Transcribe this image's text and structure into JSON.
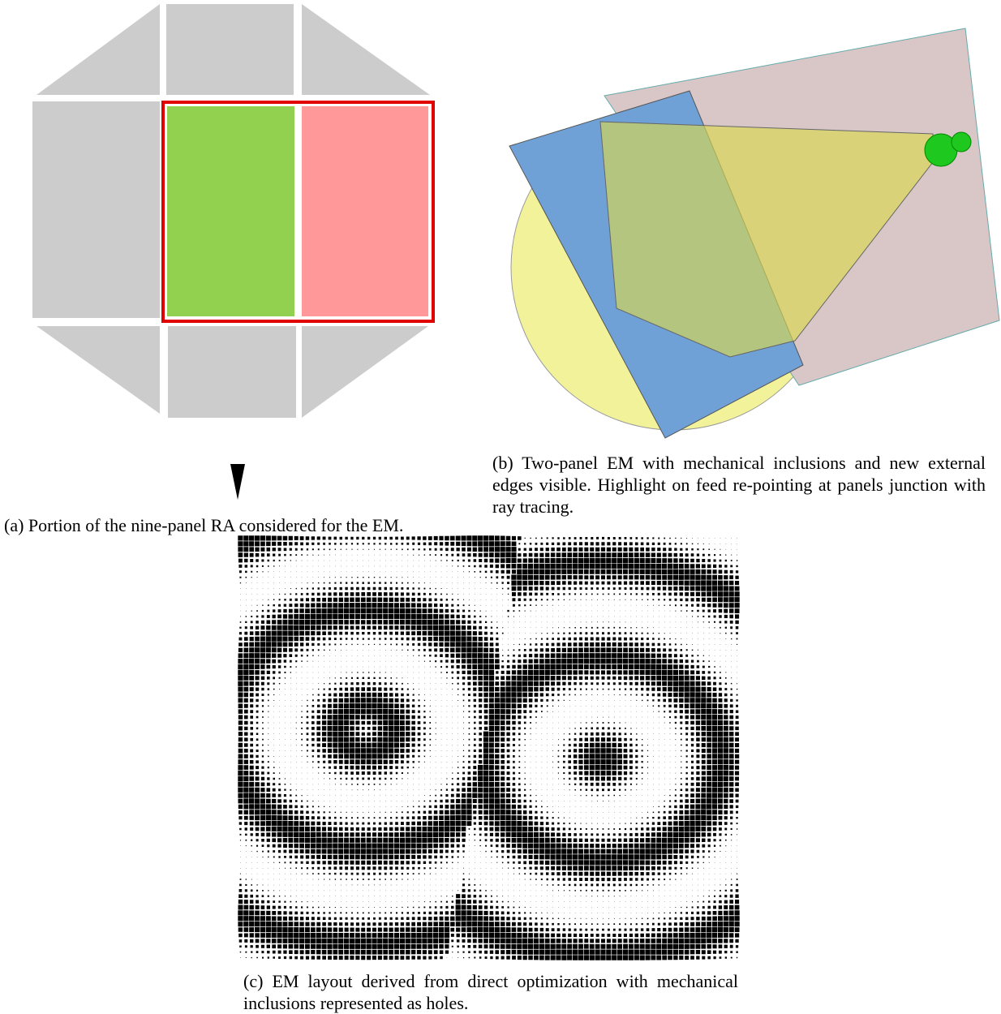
{
  "captions": {
    "a": "(a) Portion of the nine-panel RA considered for the EM.",
    "b": "(b) Two-panel EM with mechanical inclusions and new external edges visible. Highlight on feed re-pointing at panels junction with ray tracing.",
    "c": "(c) EM layout derived from direct optimization with mechanical inclusions represented as holes."
  }
}
